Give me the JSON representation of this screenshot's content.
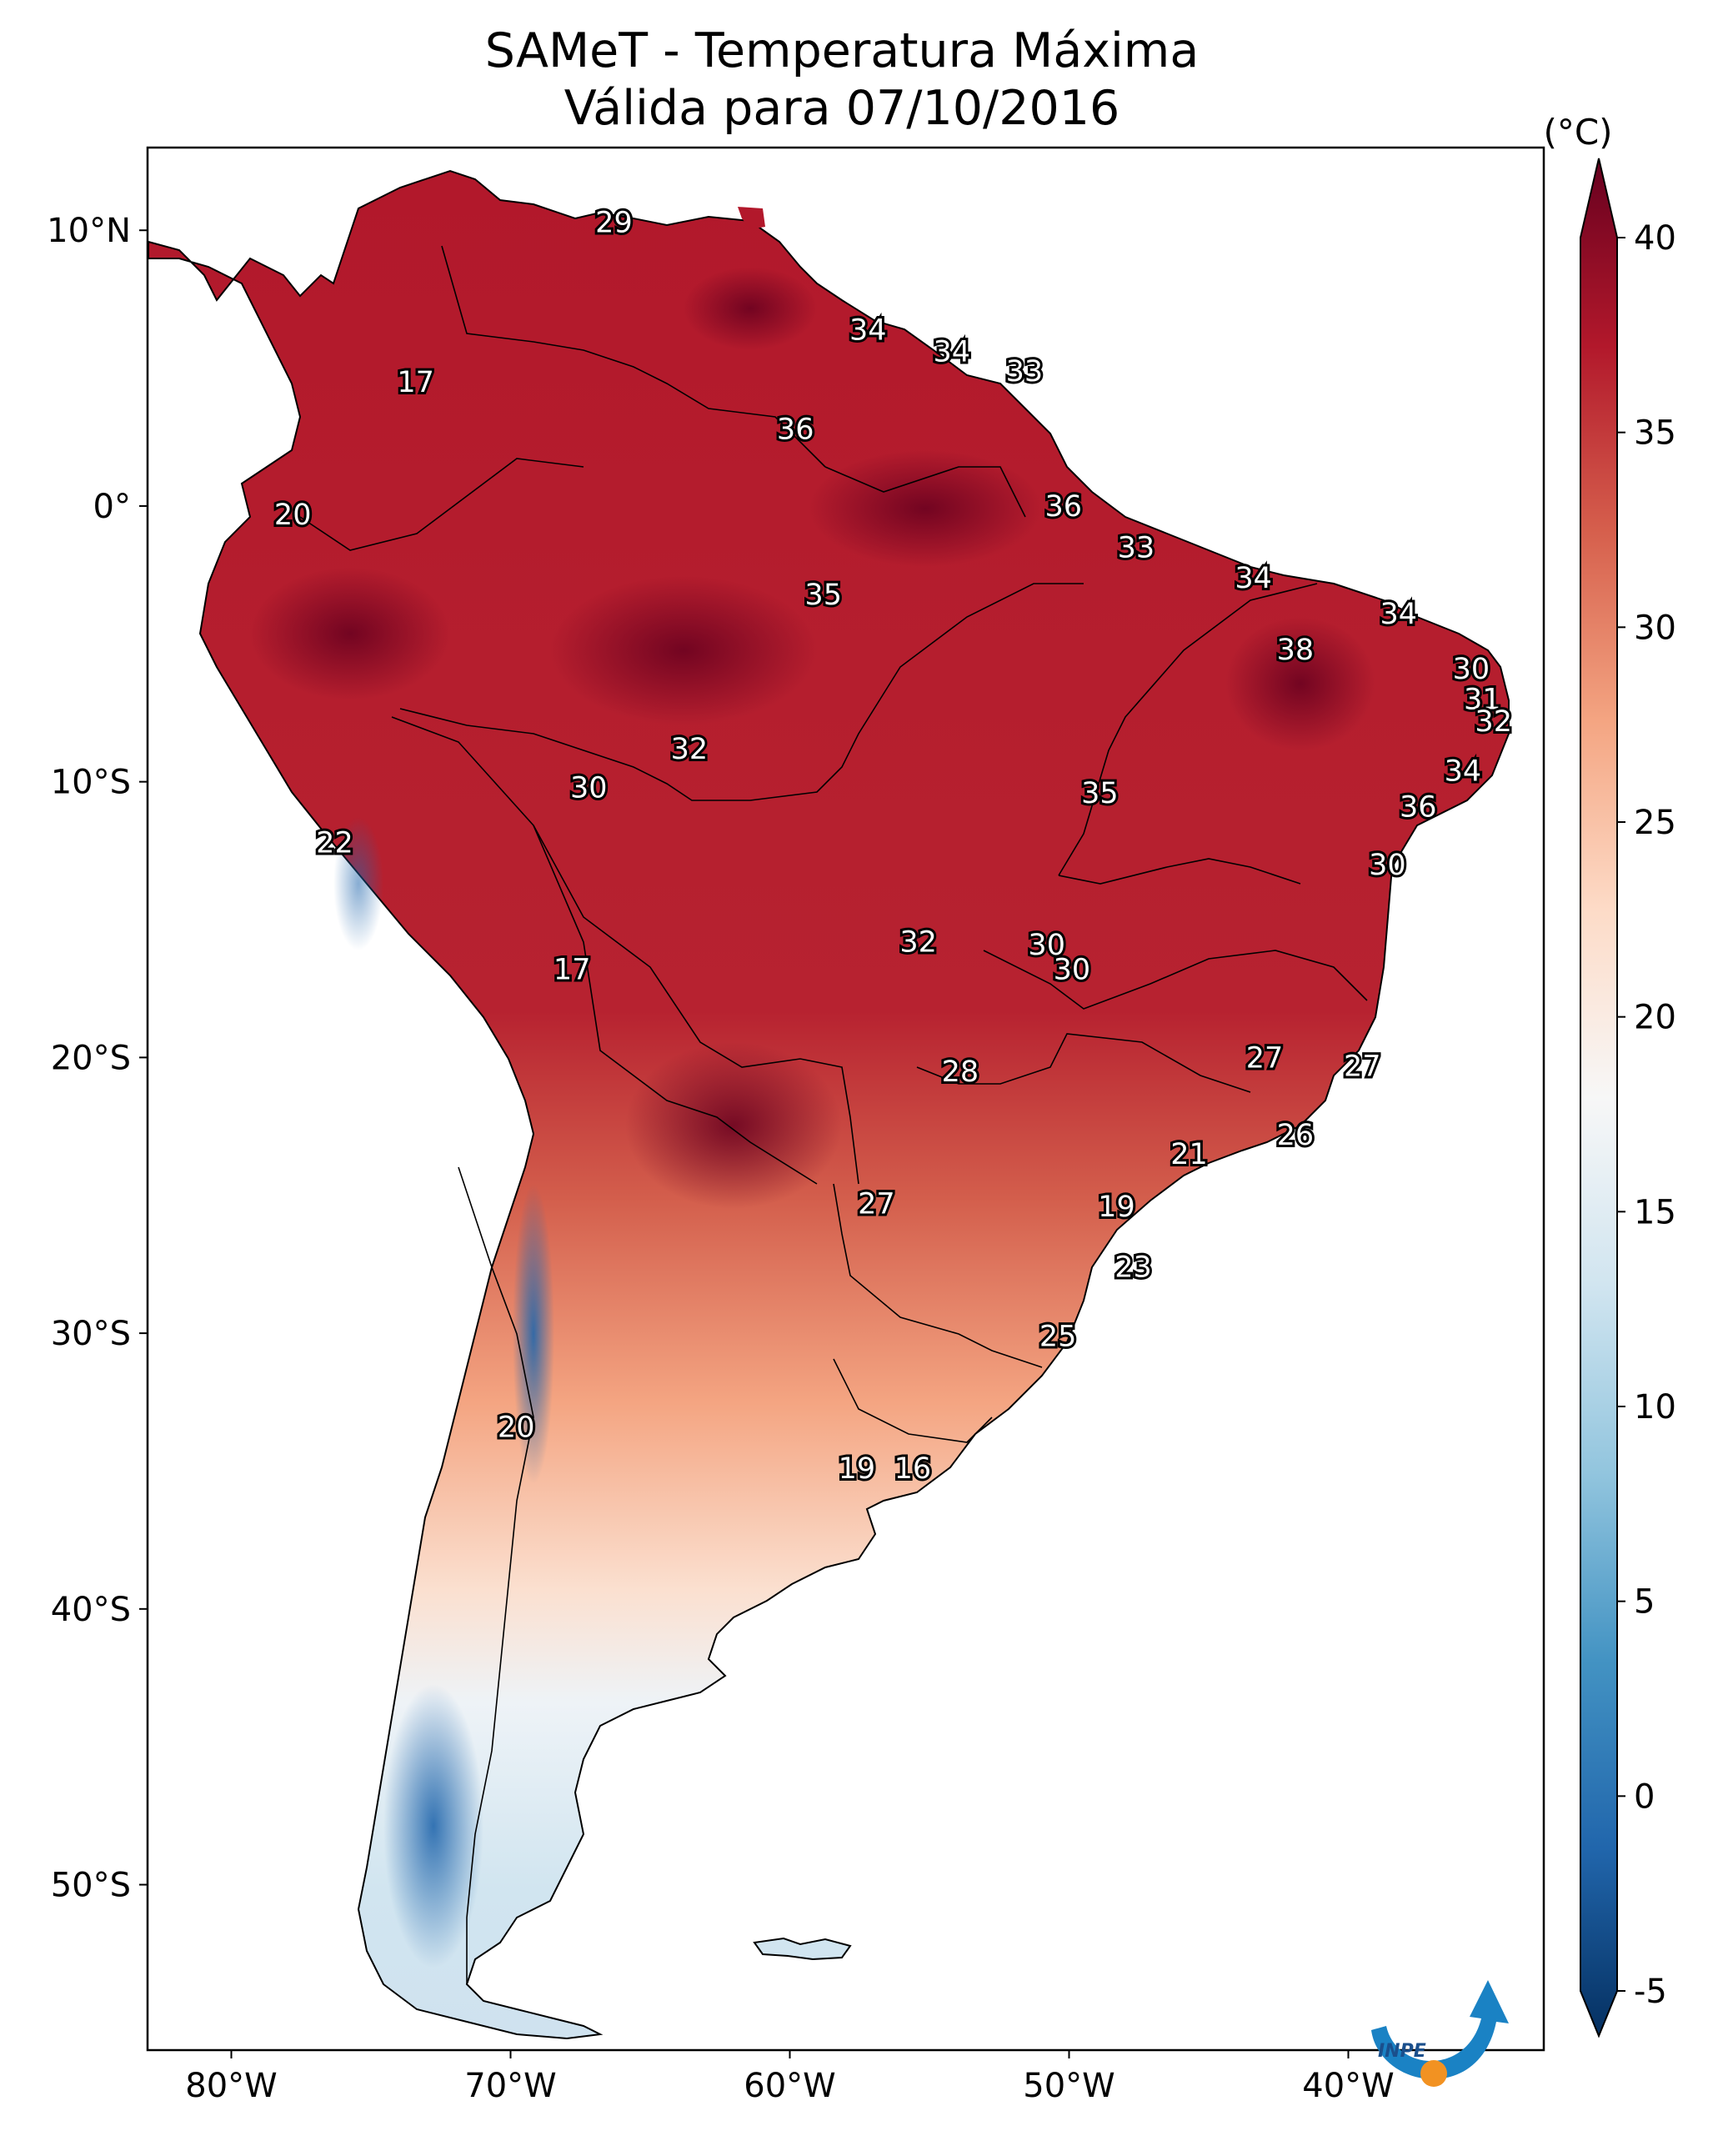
{
  "title": {
    "line1": "SAMeT - Temperatura Máxima",
    "line2": "Válida para 07/10/2016"
  },
  "map": {
    "lon_range": [
      -83,
      -33
    ],
    "lat_range": [
      -56,
      13
    ],
    "lat_ticks": [
      {
        "value": 10,
        "label": "10°N"
      },
      {
        "value": 0,
        "label": "0°"
      },
      {
        "value": -10,
        "label": "10°S"
      },
      {
        "value": -20,
        "label": "20°S"
      },
      {
        "value": -30,
        "label": "30°S"
      },
      {
        "value": -40,
        "label": "40°S"
      },
      {
        "value": -50,
        "label": "50°S"
      }
    ],
    "lon_ticks": [
      {
        "value": -80,
        "label": "80°W"
      },
      {
        "value": -70,
        "label": "70°W"
      },
      {
        "value": -60,
        "label": "60°W"
      },
      {
        "value": -50,
        "label": "50°W"
      },
      {
        "value": -40,
        "label": "40°W"
      }
    ]
  },
  "colorbar": {
    "unit": "(°C)",
    "min": -5,
    "max": 40,
    "ticks": [
      {
        "value": 40,
        "label": "40"
      },
      {
        "value": 35,
        "label": "35"
      },
      {
        "value": 30,
        "label": "30"
      },
      {
        "value": 25,
        "label": "25"
      },
      {
        "value": 20,
        "label": "20"
      },
      {
        "value": 15,
        "label": "15"
      },
      {
        "value": 10,
        "label": "10"
      },
      {
        "value": 5,
        "label": "5"
      },
      {
        "value": 0,
        "label": "0"
      },
      {
        "value": -5,
        "label": "-5"
      }
    ],
    "colors": [
      "#053061",
      "#2166ac",
      "#4393c3",
      "#92c5de",
      "#d1e5f0",
      "#f7f7f7",
      "#fddbc7",
      "#f4a582",
      "#d6604d",
      "#b2182b",
      "#67001f"
    ]
  },
  "temperature_labels": [
    {
      "text": "29",
      "lon": -66.3,
      "lat": 10.3
    },
    {
      "text": "34",
      "lon": -57.2,
      "lat": 6.4
    },
    {
      "text": "34",
      "lon": -54.2,
      "lat": 5.6
    },
    {
      "text": "33",
      "lon": -51.6,
      "lat": 4.9
    },
    {
      "text": "17",
      "lon": -73.4,
      "lat": 4.5
    },
    {
      "text": "36",
      "lon": -59.8,
      "lat": 2.8
    },
    {
      "text": "20",
      "lon": -77.8,
      "lat": -0.3
    },
    {
      "text": "36",
      "lon": -50.2,
      "lat": 0.0
    },
    {
      "text": "33",
      "lon": -47.6,
      "lat": -1.5
    },
    {
      "text": "34",
      "lon": -43.4,
      "lat": -2.6
    },
    {
      "text": "35",
      "lon": -58.8,
      "lat": -3.2
    },
    {
      "text": "34",
      "lon": -38.2,
      "lat": -3.9
    },
    {
      "text": "38",
      "lon": -41.9,
      "lat": -5.2
    },
    {
      "text": "30",
      "lon": -35.6,
      "lat": -5.9
    },
    {
      "text": "31",
      "lon": -35.2,
      "lat": -7.0
    },
    {
      "text": "32",
      "lon": -34.8,
      "lat": -7.8
    },
    {
      "text": "32",
      "lon": -63.6,
      "lat": -8.8
    },
    {
      "text": "34",
      "lon": -35.9,
      "lat": -9.6
    },
    {
      "text": "30",
      "lon": -67.2,
      "lat": -10.2
    },
    {
      "text": "35",
      "lon": -48.9,
      "lat": -10.4
    },
    {
      "text": "36",
      "lon": -37.5,
      "lat": -10.9
    },
    {
      "text": "22",
      "lon": -76.3,
      "lat": -12.2
    },
    {
      "text": "30",
      "lon": -38.6,
      "lat": -13.0
    },
    {
      "text": "32",
      "lon": -55.4,
      "lat": -15.8
    },
    {
      "text": "30",
      "lon": -50.8,
      "lat": -15.9
    },
    {
      "text": "17",
      "lon": -67.8,
      "lat": -16.8
    },
    {
      "text": "30",
      "lon": -49.9,
      "lat": -16.8
    },
    {
      "text": "27",
      "lon": -43.0,
      "lat": -20.0
    },
    {
      "text": "28",
      "lon": -53.9,
      "lat": -20.5
    },
    {
      "text": "27",
      "lon": -39.5,
      "lat": -20.3
    },
    {
      "text": "26",
      "lon": -41.9,
      "lat": -22.8
    },
    {
      "text": "21",
      "lon": -45.7,
      "lat": -23.5
    },
    {
      "text": "27",
      "lon": -56.9,
      "lat": -25.3
    },
    {
      "text": "19",
      "lon": -48.3,
      "lat": -25.4
    },
    {
      "text": "23",
      "lon": -47.7,
      "lat": -27.6
    },
    {
      "text": "25",
      "lon": -50.4,
      "lat": -30.1
    },
    {
      "text": "20",
      "lon": -69.8,
      "lat": -33.4
    },
    {
      "text": "19",
      "lon": -57.6,
      "lat": -34.9
    },
    {
      "text": "16",
      "lon": -55.6,
      "lat": -34.9
    }
  ],
  "logo": {
    "text": "INPE"
  }
}
